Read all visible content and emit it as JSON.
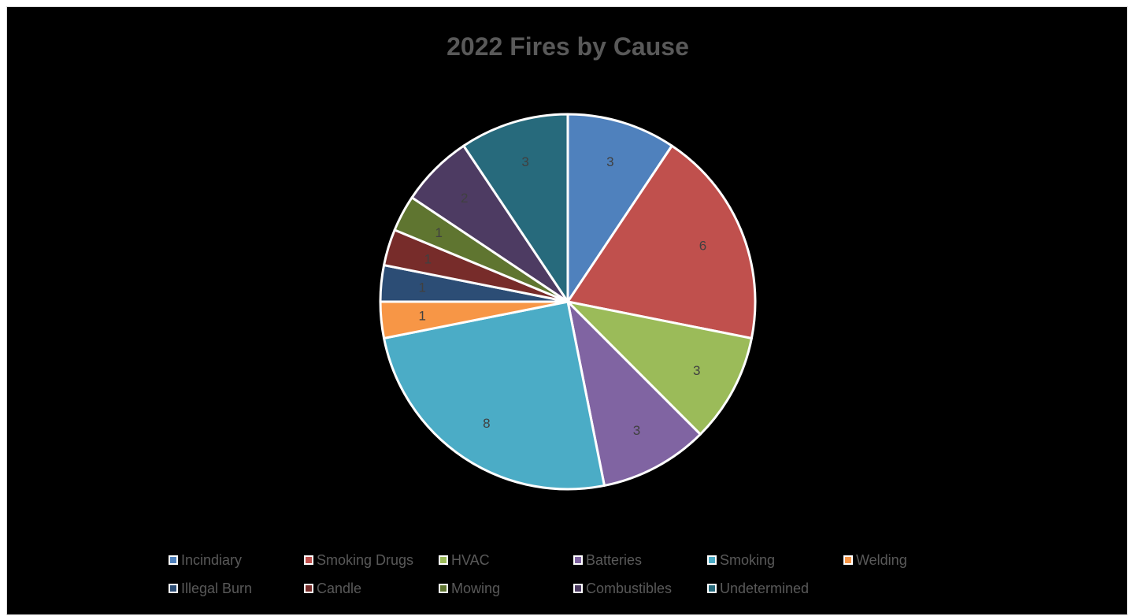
{
  "chart_data": {
    "type": "pie",
    "title": "2022 Fires by Cause",
    "categories": [
      "Incindiary",
      "Smoking Drugs",
      "HVAC",
      "Batteries",
      "Smoking",
      "Welding",
      "Illegal Burn",
      "Candle",
      "Mowing",
      "Combustibles",
      "Undetermined"
    ],
    "values": [
      3,
      6,
      3,
      3,
      8,
      1,
      1,
      1,
      1,
      2,
      3
    ],
    "colors": [
      "#4f81bd",
      "#c0504d",
      "#9bbb59",
      "#8064a2",
      "#4bacc6",
      "#f79646",
      "#2c4d75",
      "#772c2a",
      "#5f7530",
      "#4d3b62",
      "#276a7c"
    ],
    "data_labels": true,
    "legend_position": "bottom"
  }
}
